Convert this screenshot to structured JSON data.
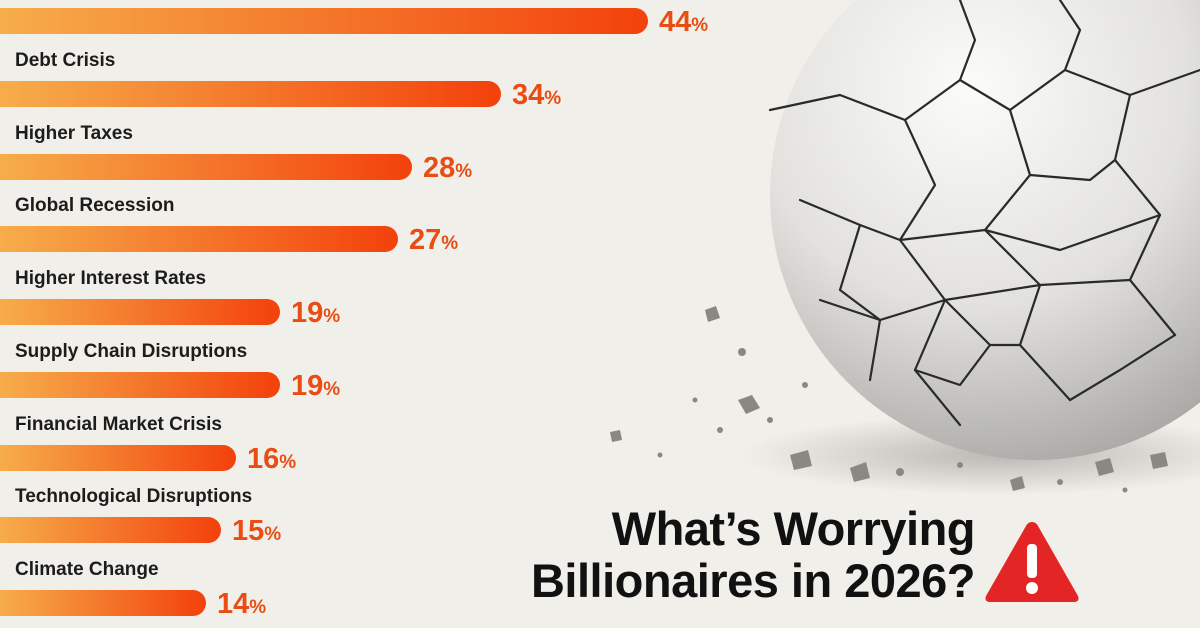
{
  "title_lines": [
    "What’s Worrying",
    "Billionaires in 2026?"
  ],
  "colors": {
    "bar_start": "#f6ad4a",
    "bar_end": "#f3410c",
    "value_text": "#e94d14",
    "label_text": "#1c1c1c",
    "warning": "#e42526"
  },
  "icons": {
    "warning": "warning-triangle-icon",
    "background": "cracked-globe-image"
  },
  "chart_data": {
    "type": "bar",
    "orientation": "horizontal",
    "title": "What’s Worrying Billionaires in 2026?",
    "unit": "%",
    "categories": [
      "",
      "Debt Crisis",
      "Higher Taxes",
      "Global Recession",
      "Higher Interest Rates",
      "Supply Chain Disruptions",
      "Financial Market Crisis",
      "Technological Disruptions",
      "Climate Change"
    ],
    "values": [
      44,
      34,
      28,
      27,
      19,
      19,
      16,
      15,
      14
    ],
    "value_labels": [
      "44",
      "34",
      "28",
      "27",
      "19",
      "19",
      "16",
      "15",
      "14"
    ],
    "xlim": [
      0,
      44
    ],
    "legend": "none",
    "grid": false
  }
}
